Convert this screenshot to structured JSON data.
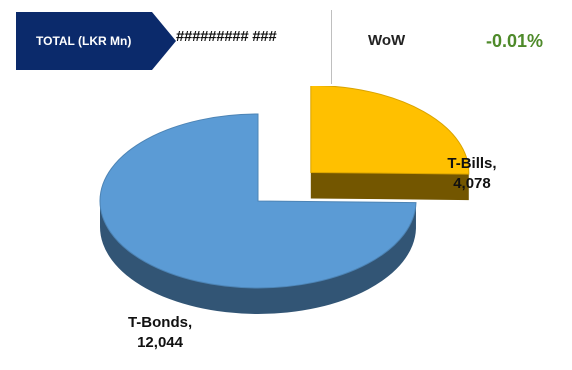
{
  "header": {
    "total_label": "TOTAL (LKR Mn)",
    "total_value": "######### ###",
    "wow_label": "WoW",
    "wow_value": "-0.01%",
    "total_box_color": "#0b2a6b",
    "wow_value_color": "#4e8a2a"
  },
  "chart_data": {
    "type": "pie",
    "style": "3d-exploded",
    "title": "",
    "categories": [
      "T-Bills",
      "T-Bonds"
    ],
    "values": [
      4078,
      12044
    ],
    "value_labels": [
      "4,078",
      "12,044"
    ],
    "colors": [
      "#ffc000",
      "#5b9bd5"
    ],
    "exploded": [
      "T-Bills"
    ],
    "legend": "none"
  }
}
